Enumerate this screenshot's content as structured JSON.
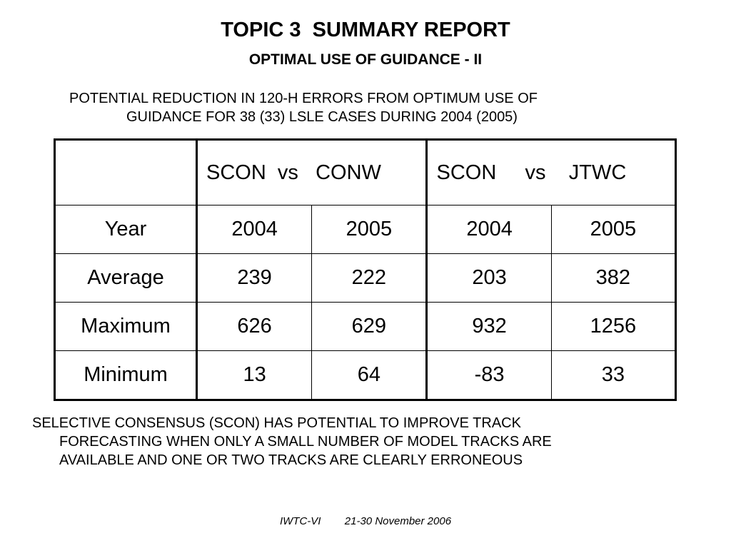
{
  "slide": {
    "title": "TOPIC 3  SUMMARY REPORT",
    "subtitle": "OPTIMAL USE OF GUIDANCE - II",
    "intro_line1": "POTENTIAL REDUCTION IN 120-H ERRORS FROM OPTIMUM USE OF",
    "intro_line2": "GUIDANCE FOR 38 (33) LSLE CASES DURING 2004 (2005)",
    "conclusion_line1": "SELECTIVE CONSENSUS (SCON) HAS POTENTIAL TO IMPROVE TRACK",
    "conclusion_line2": "FORECASTING WHEN ONLY A SMALL NUMBER OF MODEL TRACKS ARE",
    "conclusion_line3": "AVAILABLE AND ONE OR TWO TRACKS ARE CLEARLY ERRONEOUS",
    "footer": "IWTC-VI        21-30 November 2006"
  },
  "table": {
    "groups": [
      "SCON  vs   CONW",
      "SCON     vs    JTWC"
    ],
    "rows": [
      {
        "label": "Year",
        "cells": [
          "2004",
          "2005",
          "2004",
          "2005"
        ]
      },
      {
        "label": "Average",
        "cells": [
          "239",
          "222",
          "203",
          "382"
        ]
      },
      {
        "label": "Maximum",
        "cells": [
          "626",
          "629",
          "932",
          "1256"
        ]
      },
      {
        "label": "Minimum",
        "cells": [
          "13",
          "64",
          "-83",
          "33"
        ]
      }
    ]
  }
}
